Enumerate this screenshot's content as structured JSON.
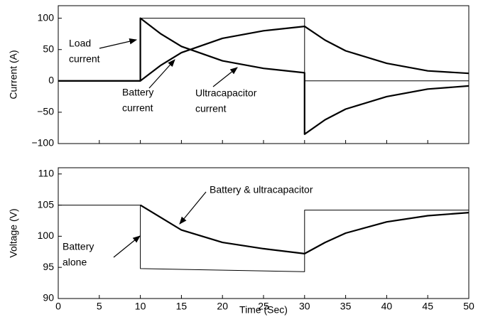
{
  "chart_data": [
    {
      "type": "line",
      "ylabel": "Current (A)",
      "xlim": [
        0,
        50
      ],
      "xticks": [
        0,
        5,
        10,
        15,
        20,
        25,
        30,
        35,
        40,
        45,
        50
      ],
      "ylim": [
        -100,
        120
      ],
      "yticks": [
        {
          "value": -100,
          "label": "−100"
        },
        {
          "value": -50,
          "label": "−50"
        },
        0,
        50,
        100
      ],
      "series": [
        {
          "name": "Load current",
          "color": "#000000",
          "width": 1,
          "x": [
            0,
            10,
            10,
            30,
            30,
            50
          ],
          "values": [
            0,
            0,
            100,
            100,
            0,
            0
          ]
        },
        {
          "name": "Battery current",
          "color": "#000000",
          "width": 2.2,
          "x": [
            0,
            10,
            12.5,
            15,
            20,
            25,
            30,
            32.5,
            35,
            40,
            45,
            50
          ],
          "values": [
            0,
            0,
            25,
            45,
            68,
            80,
            87,
            65,
            48,
            28,
            16,
            12
          ]
        },
        {
          "name": "Ultracapacitor current",
          "color": "#000000",
          "width": 2.2,
          "x": [
            0,
            10,
            10,
            12.5,
            15,
            20,
            25,
            30,
            30,
            32.5,
            35,
            40,
            45,
            50
          ],
          "values": [
            0,
            0,
            100,
            75,
            55,
            32,
            20,
            13,
            -85,
            -62,
            -45,
            -25,
            -13,
            -8
          ]
        }
      ],
      "annotations": [
        [
          "Load",
          "current"
        ],
        [
          "Battery",
          "current"
        ],
        [
          "Ultracapacitor",
          "current"
        ]
      ]
    },
    {
      "type": "line",
      "xlabel": "Time (Sec)",
      "ylabel": "Voltage (V)",
      "xlim": [
        0,
        50
      ],
      "xticks": [
        0,
        5,
        10,
        15,
        20,
        25,
        30,
        35,
        40,
        45,
        50
      ],
      "ylim": [
        90,
        111
      ],
      "yticks": [
        90,
        95,
        100,
        105,
        110
      ],
      "series": [
        {
          "name": "Battery alone",
          "color": "#000000",
          "width": 1,
          "x": [
            0,
            10,
            10,
            30,
            30,
            50
          ],
          "values": [
            105,
            105,
            94.8,
            94.3,
            104.2,
            104.2
          ]
        },
        {
          "name": "Battery & ultracapacitor",
          "color": "#000000",
          "width": 2.2,
          "x": [
            10,
            12.5,
            15,
            20,
            25,
            30,
            32.5,
            35,
            40,
            45,
            50
          ],
          "values": [
            105,
            103,
            101,
            99,
            98,
            97.2,
            99,
            100.5,
            102.3,
            103.3,
            103.8
          ]
        }
      ],
      "annotations": [
        [
          "Battery & ultracapacitor"
        ],
        [
          "Battery",
          "alone"
        ]
      ]
    }
  ]
}
